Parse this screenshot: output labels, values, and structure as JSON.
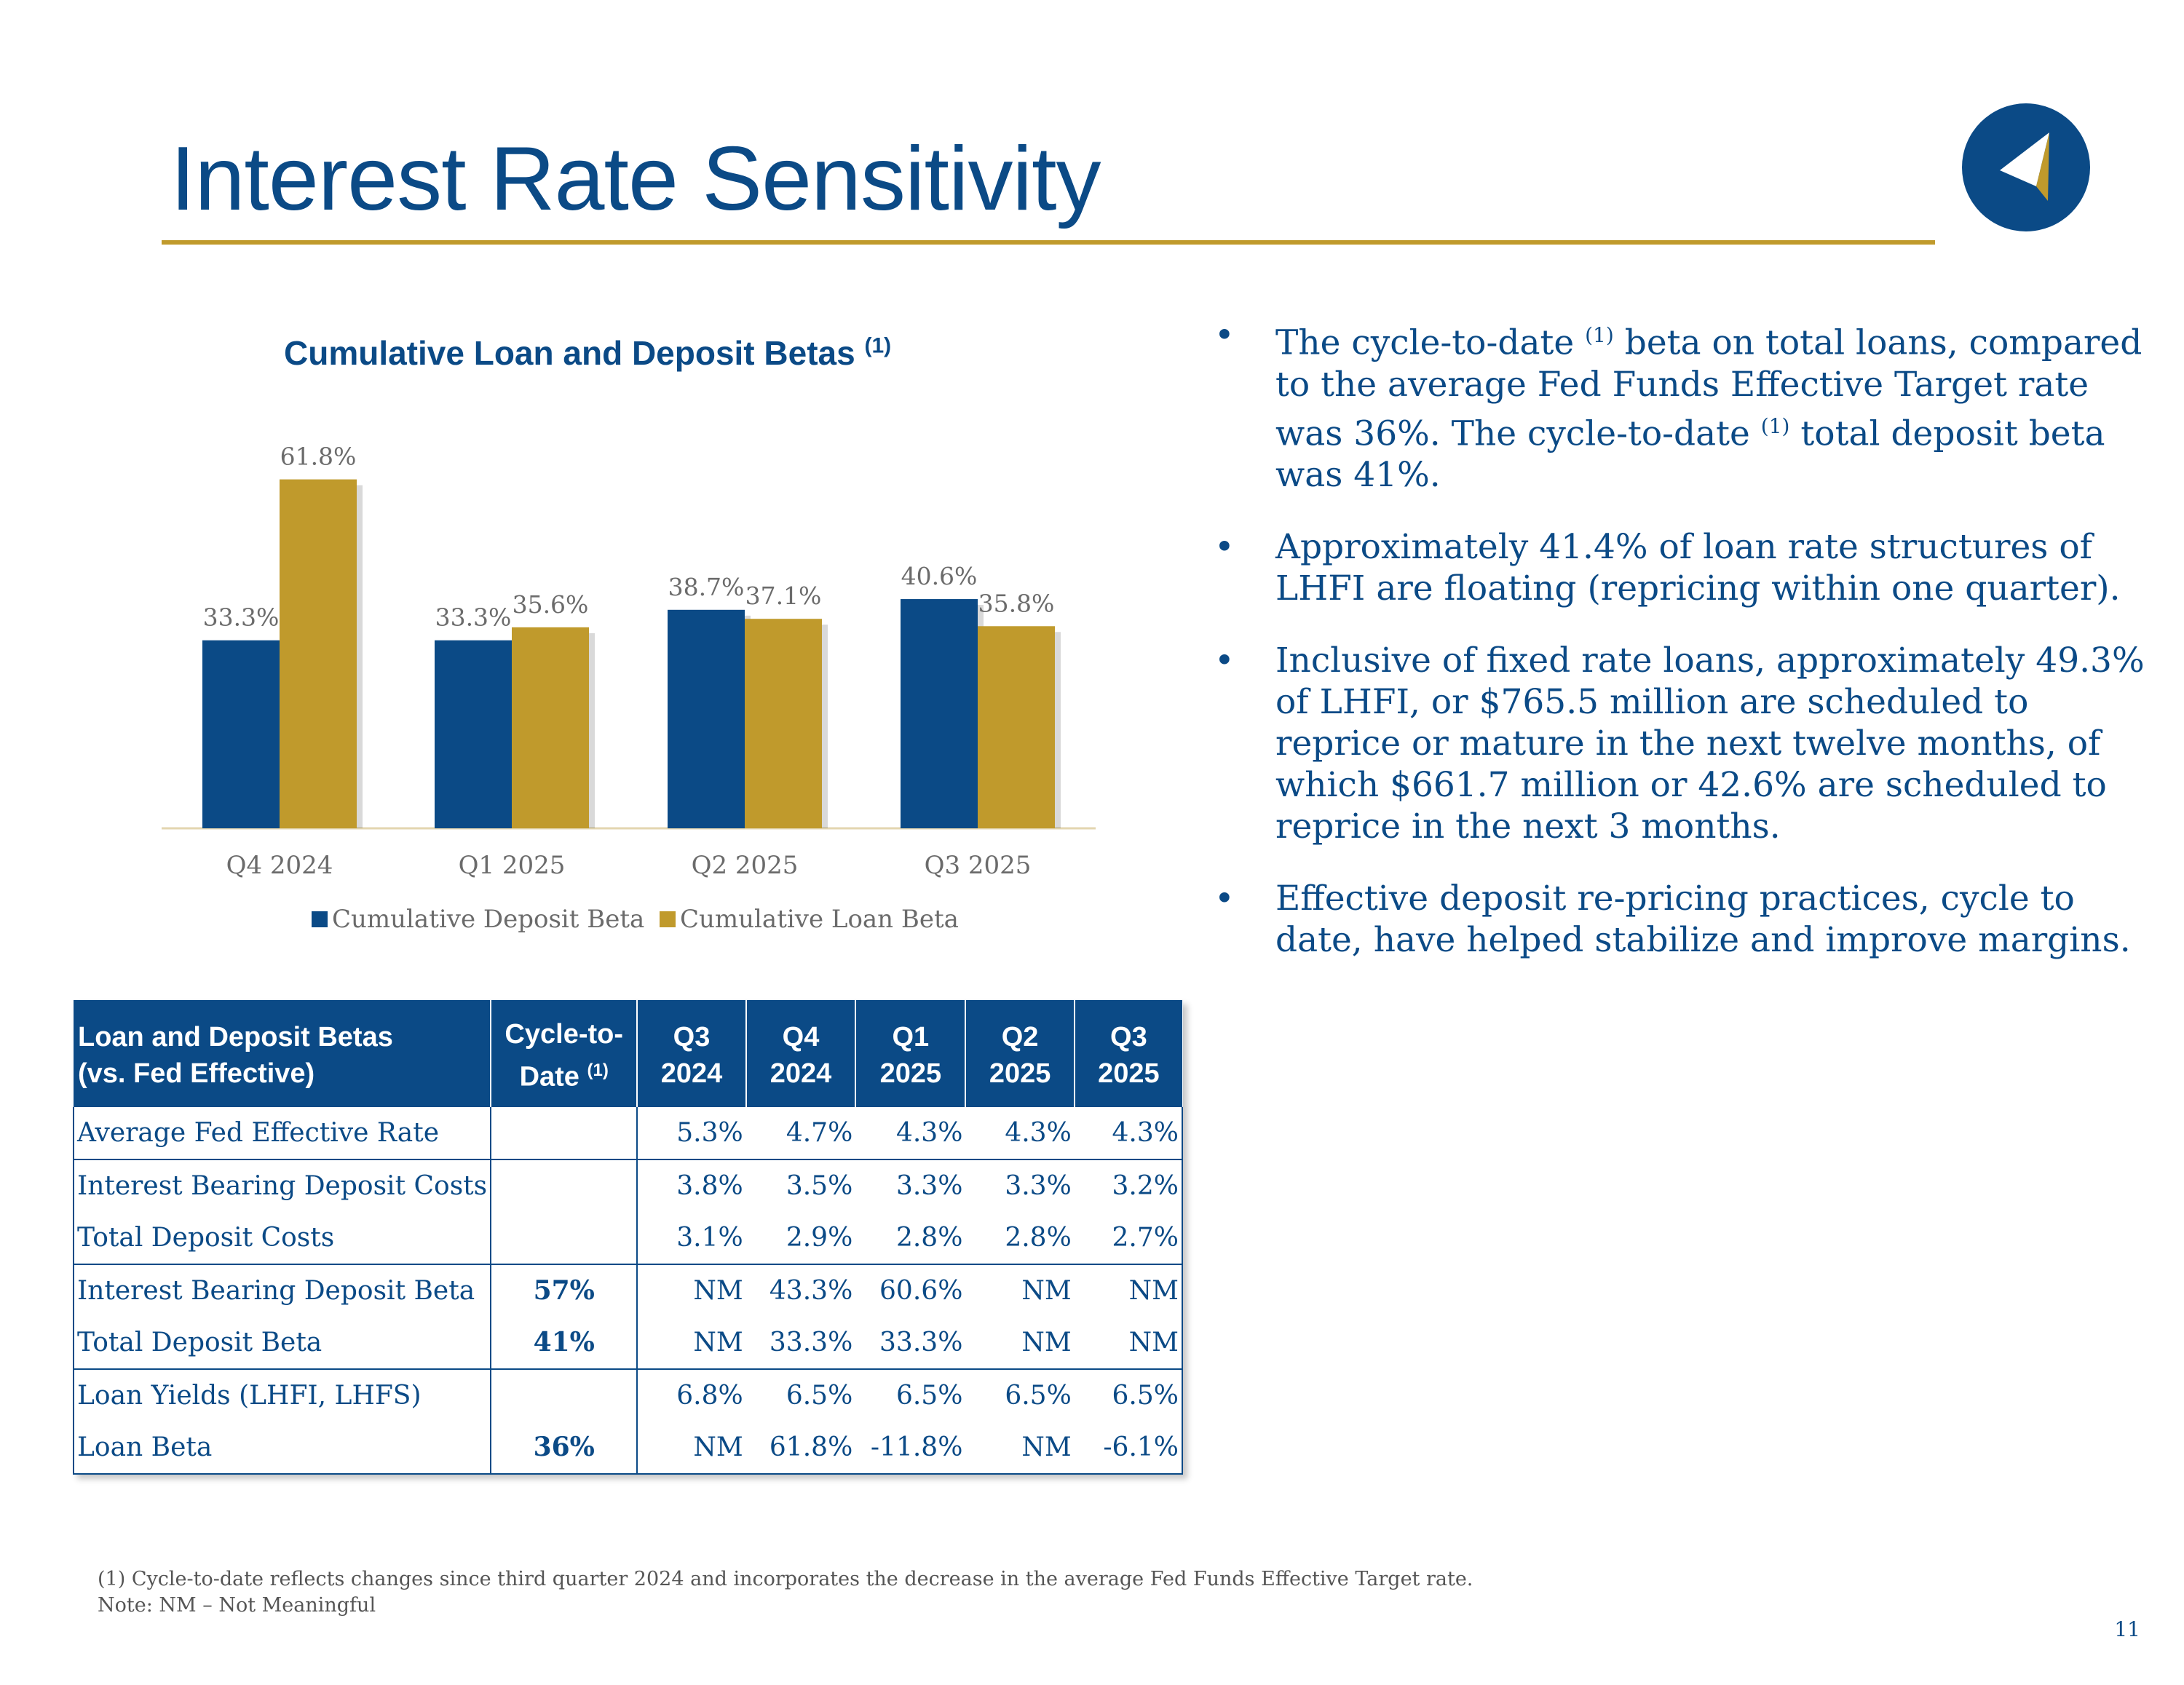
{
  "title": "Interest Rate Sensitivity",
  "colors": {
    "brand_blue": "#0b4a86",
    "gold": "#c09a2c"
  },
  "logo": {
    "icon": "compass-arrow-logo"
  },
  "chart_data": {
    "type": "bar",
    "title": "Cumulative Loan and Deposit Betas",
    "title_note": "(1)",
    "categories": [
      "Q4 2024",
      "Q1 2025",
      "Q2 2025",
      "Q3 2025"
    ],
    "series": [
      {
        "name": "Cumulative Deposit Beta",
        "color": "#0b4a86",
        "values": [
          33.3,
          33.3,
          38.7,
          40.6
        ],
        "labels": [
          "33.3%",
          "33.3%",
          "38.7%",
          "40.6%"
        ]
      },
      {
        "name": "Cumulative Loan Beta",
        "color": "#c09a2c",
        "values": [
          61.8,
          35.6,
          37.1,
          35.8
        ],
        "labels": [
          "61.8%",
          "35.6%",
          "37.1%",
          "35.8%"
        ]
      }
    ],
    "xlabel": "",
    "ylabel": "",
    "ylim": [
      0,
      70
    ],
    "grid": false,
    "legend": "bottom"
  },
  "bullets": [
    {
      "before": "The cycle-to-date ",
      "note": "(1)",
      "middle": " beta on total loans, compared to the average Fed Funds Effective Target rate was 36%.  The cycle-to-date ",
      "note2": "(1)",
      "after": " total deposit beta was 41%."
    },
    {
      "text": "Approximately 41.4% of loan rate structures of LHFI are floating (repricing within one quarter)."
    },
    {
      "text": "Inclusive of fixed rate loans, approximately 49.3% of LHFI, or $765.5 million are scheduled to reprice or mature in the next twelve months, of which $661.7 million or 42.6% are scheduled to reprice in the next 3 months."
    },
    {
      "text": "Effective deposit re-pricing practices, cycle to date, have helped stabilize and improve margins."
    }
  ],
  "table": {
    "header": {
      "label_line1": "Loan and Deposit Betas",
      "label_line2": "(vs. Fed Effective)",
      "cycle_line1": "Cycle-to-",
      "cycle_line2": "Date",
      "cycle_note": "(1)",
      "quarters": [
        {
          "q": "Q3",
          "y": "2024"
        },
        {
          "q": "Q4",
          "y": "2024"
        },
        {
          "q": "Q1",
          "y": "2025"
        },
        {
          "q": "Q2",
          "y": "2025"
        },
        {
          "q": "Q3",
          "y": "2025"
        }
      ]
    },
    "rows": [
      {
        "label": "Average Fed Effective Rate",
        "cycle": "",
        "values": [
          "5.3%",
          "4.7%",
          "4.3%",
          "4.3%",
          "4.3%"
        ]
      },
      {
        "label": "Interest Bearing Deposit Costs",
        "cycle": "",
        "values": [
          "3.8%",
          "3.5%",
          "3.3%",
          "3.3%",
          "3.2%"
        ]
      },
      {
        "label": "Total Deposit Costs",
        "cycle": "",
        "values": [
          "3.1%",
          "2.9%",
          "2.8%",
          "2.8%",
          "2.7%"
        ]
      },
      {
        "label": "Interest Bearing Deposit Beta",
        "cycle": "57%",
        "values": [
          "NM",
          "43.3%",
          "60.6%",
          "NM",
          "NM"
        ]
      },
      {
        "label": "Total Deposit Beta",
        "cycle": "41%",
        "values": [
          "NM",
          "33.3%",
          "33.3%",
          "NM",
          "NM"
        ]
      },
      {
        "label": "Loan Yields (LHFI, LHFS)",
        "cycle": "",
        "values": [
          "6.8%",
          "6.5%",
          "6.5%",
          "6.5%",
          "6.5%"
        ]
      },
      {
        "label": "Loan Beta",
        "cycle": "36%",
        "values": [
          "NM",
          "61.8%",
          "-11.8%",
          "NM",
          "-6.1%"
        ]
      }
    ]
  },
  "footnote": {
    "line1": "(1) Cycle-to-date reflects changes since third quarter 2024 and incorporates the decrease in the average Fed Funds Effective Target rate.",
    "line2": "Note: NM – Not Meaningful"
  },
  "page_number": "11"
}
